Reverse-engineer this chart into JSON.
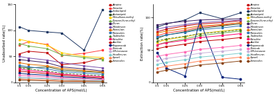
{
  "x_labels": [
    "0.1",
    "0.15",
    "0.25",
    "0.33",
    "0.45",
    "0.55"
  ],
  "x_values": [
    0.1,
    0.15,
    0.25,
    0.33,
    0.45,
    0.55
  ],
  "xlabel": "Concentration of APS(mol/L)",
  "ylabel_left": "Unabsorbed rate(%)",
  "ylabel_right": "Extraction rate(%)",
  "compounds": [
    "Atrazine",
    "Simazine",
    "Imidacloprid",
    "Acetamiprid",
    "Metsulfuron-methyl",
    "Pyrazosulfuron-ethyl",
    "Diuron",
    "Monolinuron",
    "Floresulam",
    "Florasulam",
    "Tiadimefon",
    "Butachlor",
    "Alachlor",
    "Propamocab",
    "Primicab",
    "Diflubenzuron",
    "Hexaflmuron",
    "Fipronil",
    "Fomesafen"
  ],
  "colors": [
    "#C00000",
    "#FF4040",
    "#1F3864",
    "#375623",
    "#FFCC00",
    "#70AD47",
    "#3D1F60",
    "#7B52AB",
    "#E07000",
    "#2E74B5",
    "#4E7B2F",
    "#FF006E",
    "#C00000",
    "#001F7A",
    "#FF69B4",
    "#C9B1D9",
    "#7FCDCD",
    "#FF7F50",
    "#8B4513"
  ],
  "line_styles": [
    "-",
    "-",
    "-",
    "-",
    "-",
    "-",
    "-",
    "-",
    "-",
    "-",
    "--",
    "-",
    "-",
    "-",
    "-",
    "-",
    "-",
    "-",
    "-"
  ],
  "markers": [
    "s",
    "s",
    "s",
    "s",
    "^",
    "^",
    "s",
    "s",
    "s",
    "s",
    "^",
    "s",
    "s",
    "o",
    "o",
    "o",
    "o",
    "^",
    "o"
  ],
  "left_data": [
    [
      55,
      60,
      57,
      34,
      38,
      47
    ],
    [
      72,
      78,
      73,
      52,
      56,
      62
    ],
    [
      107,
      100,
      97,
      95,
      62,
      140
    ],
    [
      30,
      28,
      30,
      24,
      21,
      19
    ],
    [
      83,
      79,
      72,
      57,
      50,
      48
    ],
    [
      75,
      70,
      65,
      53,
      48,
      44
    ],
    [
      44,
      42,
      38,
      30,
      26,
      22
    ],
    [
      50,
      47,
      43,
      38,
      32,
      28
    ],
    [
      38,
      35,
      32,
      27,
      23,
      20
    ],
    [
      33,
      30,
      26,
      21,
      18,
      16
    ],
    [
      28,
      26,
      22,
      18,
      15,
      13
    ],
    [
      26,
      23,
      20,
      16,
      13,
      11
    ],
    [
      22,
      20,
      17,
      14,
      11,
      9
    ],
    [
      18,
      16,
      14,
      11,
      9,
      7
    ],
    [
      14,
      13,
      11,
      9,
      7,
      6
    ],
    [
      11,
      10,
      8,
      7,
      5,
      4
    ],
    [
      9,
      8,
      7,
      5,
      4,
      3
    ],
    [
      7,
      6,
      5,
      4,
      3,
      2
    ],
    [
      5,
      4,
      3,
      2,
      2,
      2
    ]
  ],
  "right_data": [
    [
      78,
      82,
      87,
      90,
      92,
      95
    ],
    [
      72,
      76,
      80,
      85,
      88,
      92
    ],
    [
      85,
      90,
      96,
      107,
      98,
      107
    ],
    [
      68,
      73,
      78,
      83,
      87,
      90
    ],
    [
      62,
      66,
      70,
      75,
      79,
      82
    ],
    [
      58,
      62,
      67,
      72,
      76,
      79
    ],
    [
      88,
      91,
      94,
      96,
      97,
      98
    ],
    [
      82,
      85,
      89,
      92,
      94,
      96
    ],
    [
      76,
      79,
      83,
      87,
      89,
      92
    ],
    [
      70,
      73,
      77,
      81,
      84,
      87
    ],
    [
      64,
      67,
      71,
      75,
      78,
      81
    ],
    [
      58,
      61,
      65,
      69,
      72,
      75
    ],
    [
      52,
      55,
      59,
      63,
      66,
      69
    ],
    [
      46,
      22,
      10,
      95,
      8,
      5
    ],
    [
      40,
      43,
      47,
      51,
      54,
      57
    ],
    [
      34,
      37,
      41,
      45,
      48,
      51
    ],
    [
      28,
      31,
      35,
      39,
      42,
      45
    ],
    [
      22,
      25,
      29,
      33,
      36,
      39
    ],
    [
      16,
      19,
      23,
      27,
      30,
      33
    ]
  ],
  "ylim_left": [
    0,
    150
  ],
  "ylim_right": [
    0,
    120
  ],
  "yticks_left": [
    0,
    50,
    100,
    150
  ],
  "yticks_right": [
    0,
    50,
    100
  ]
}
